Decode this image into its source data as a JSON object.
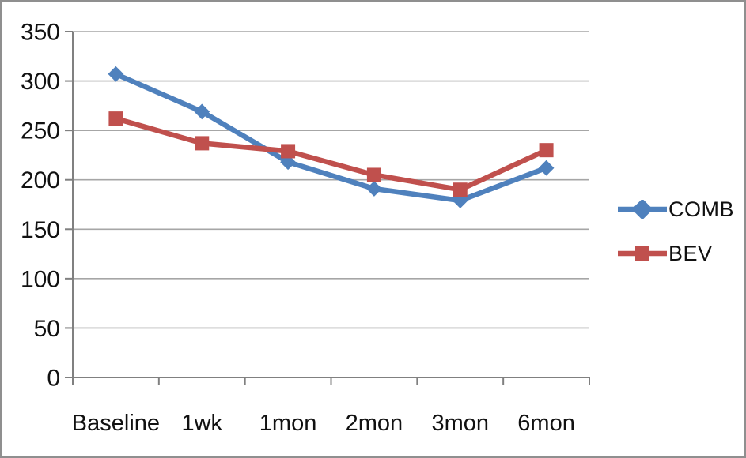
{
  "frame": {
    "background": "#ffffff",
    "border_color": "#8f8f8f"
  },
  "chart_data": {
    "type": "line",
    "title": "",
    "xlabel": "",
    "ylabel": "",
    "categories": [
      "Baseline",
      "1wk",
      "1mon",
      "2mon",
      "3mon",
      "6mon"
    ],
    "series": [
      {
        "name": "COMB",
        "color": "#4F81BD",
        "marker": "diamond",
        "values": [
          307,
          269,
          218,
          191,
          179,
          212
        ]
      },
      {
        "name": "BEV",
        "color": "#C0504D",
        "marker": "square",
        "values": [
          262,
          237,
          229,
          205,
          190,
          230
        ]
      }
    ],
    "ylim": [
      0,
      350
    ],
    "yticks": [
      0,
      50,
      100,
      150,
      200,
      250,
      300,
      350
    ],
    "grid": true,
    "legend_position": "right",
    "axis_color": "#808080",
    "gridline_color": "#A6A6A6",
    "tick_label_color": "#111111"
  }
}
